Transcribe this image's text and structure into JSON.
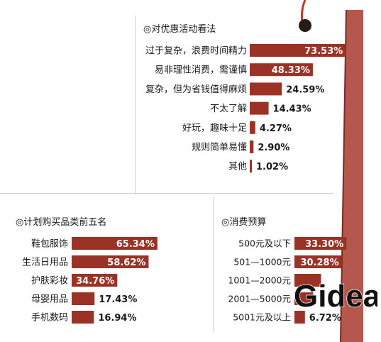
{
  "colors": {
    "bar": "#9b3226",
    "bar_label_bg": "#9b3226",
    "pole": "#b5574c",
    "pole_edge": "#7a2a21",
    "divider": "#cfcfcf"
  },
  "logo_text": "Gidea",
  "chart_data": [
    {
      "type": "bar",
      "orientation": "horizontal",
      "title": "◎对优惠活动看法",
      "categories": [
        "过于复杂，浪费时间精力",
        "易非理性消费，需谨慎",
        "复杂，但为省钱值得麻烦",
        "不太了解",
        "好玩，趣味十足",
        "规则简单易懂",
        "其他"
      ],
      "values": [
        73.53,
        48.33,
        24.59,
        14.43,
        4.27,
        2.9,
        1.02
      ],
      "value_labels": [
        "73.53%",
        "48.33%",
        "24.59%",
        "14.43%",
        "4.27%",
        "2.90%",
        "1.02%"
      ],
      "unit": "%"
    },
    {
      "type": "bar",
      "orientation": "horizontal",
      "title": "◎计划购买品类前五名",
      "categories": [
        "鞋包服饰",
        "生活日用品",
        "护肤彩妆",
        "母婴用品",
        "手机数码"
      ],
      "values": [
        65.34,
        58.62,
        34.76,
        17.43,
        16.94
      ],
      "value_labels": [
        "65.34%",
        "58.62%",
        "34.76%",
        "17.43%",
        "16.94%"
      ],
      "unit": "%"
    },
    {
      "type": "bar",
      "orientation": "horizontal",
      "title": "◎消费预算",
      "categories": [
        "500元及以下",
        "501—1000元",
        "1001—2000元",
        "2001—5000元",
        "5001元及以上"
      ],
      "values": [
        33.3,
        30.28,
        17.0,
        12.0,
        6.72
      ],
      "value_labels": [
        "33.30%",
        "30.28%",
        "",
        "",
        "6.72%"
      ],
      "unit": "%"
    }
  ]
}
